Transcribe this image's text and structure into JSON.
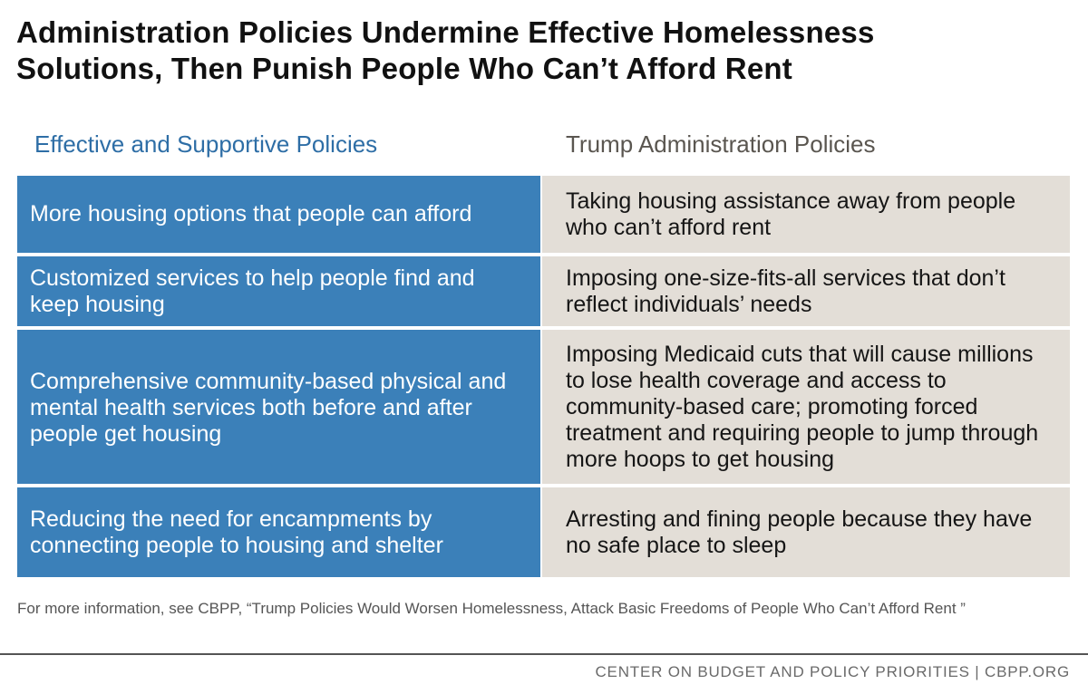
{
  "title": {
    "line1": "Administration Policies Undermine Effective Homelessness",
    "line2": "Solutions, Then Punish People Who Can’t Afford Rent"
  },
  "columns": {
    "left_header": "Effective and Supportive Policies",
    "right_header": "Trump Administration Policies"
  },
  "rows": [
    {
      "effective": "More housing options that people can afford",
      "trump": "Taking housing assistance away from people who can’t afford rent"
    },
    {
      "effective": "Customized services to help people find and keep housing",
      "trump": "Imposing one-size-fits-all services that don’t reflect individuals’ needs"
    },
    {
      "effective": "Comprehensive community-based physical and mental health services both before and after people get housing",
      "trump": "Imposing Medicaid cuts that will cause millions to lose health coverage and access to community-based care; promoting forced treatment and requiring people to jump through more hoops to get housing"
    },
    {
      "effective": "Reducing the need for encampments by connecting people to housing and shelter",
      "trump": "Arresting and fining people because they have no safe place to sleep"
    }
  ],
  "footnote": "For more information, see CBPP, “Trump Policies Would Worsen Homelessness, Attack Basic Freedoms of People Who Can’t Afford Rent ”",
  "credit": "CENTER ON BUDGET AND POLICY PRIORITIES | CBPP.ORG",
  "colors": {
    "effective_bg": "#3b80b9",
    "trump_bg": "#e3ded7",
    "left_header": "#2e6ea6",
    "right_header": "#5a5650"
  }
}
